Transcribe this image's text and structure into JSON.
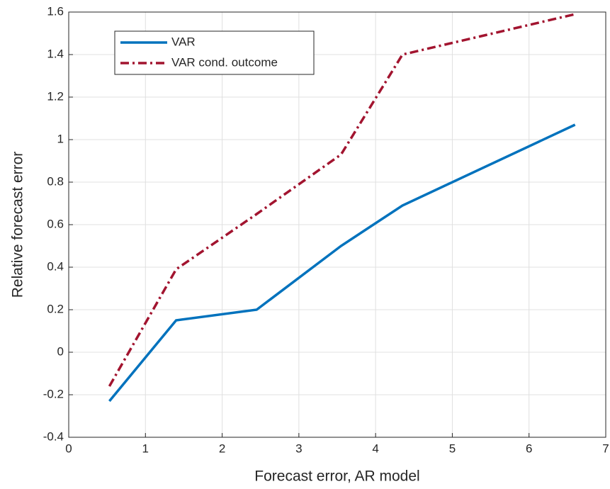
{
  "chart_data": {
    "type": "line",
    "xlabel": "Forecast error, AR model",
    "ylabel": "Relative forecast error",
    "x": [
      0.53,
      1.4,
      2.45,
      3.55,
      4.35,
      6.6
    ],
    "series": [
      {
        "name": "VAR",
        "color": "#0072bd",
        "linestyle": "solid",
        "values": [
          -0.23,
          0.15,
          0.2,
          0.5,
          0.69,
          1.07
        ]
      },
      {
        "name": "VAR cond. outcome",
        "color": "#a2142f",
        "linestyle": "dashdot",
        "values": [
          -0.16,
          0.39,
          0.65,
          0.93,
          1.4,
          1.59
        ]
      }
    ],
    "xlim": [
      0,
      7
    ],
    "xticks": [
      0,
      1,
      2,
      3,
      4,
      5,
      6,
      7
    ],
    "ylim": [
      -0.4,
      1.6
    ],
    "yticks": [
      -0.4,
      -0.2,
      0,
      0.2,
      0.4,
      0.6,
      0.8,
      1,
      1.2,
      1.4,
      1.6
    ],
    "grid": true,
    "legend": "upper left"
  }
}
